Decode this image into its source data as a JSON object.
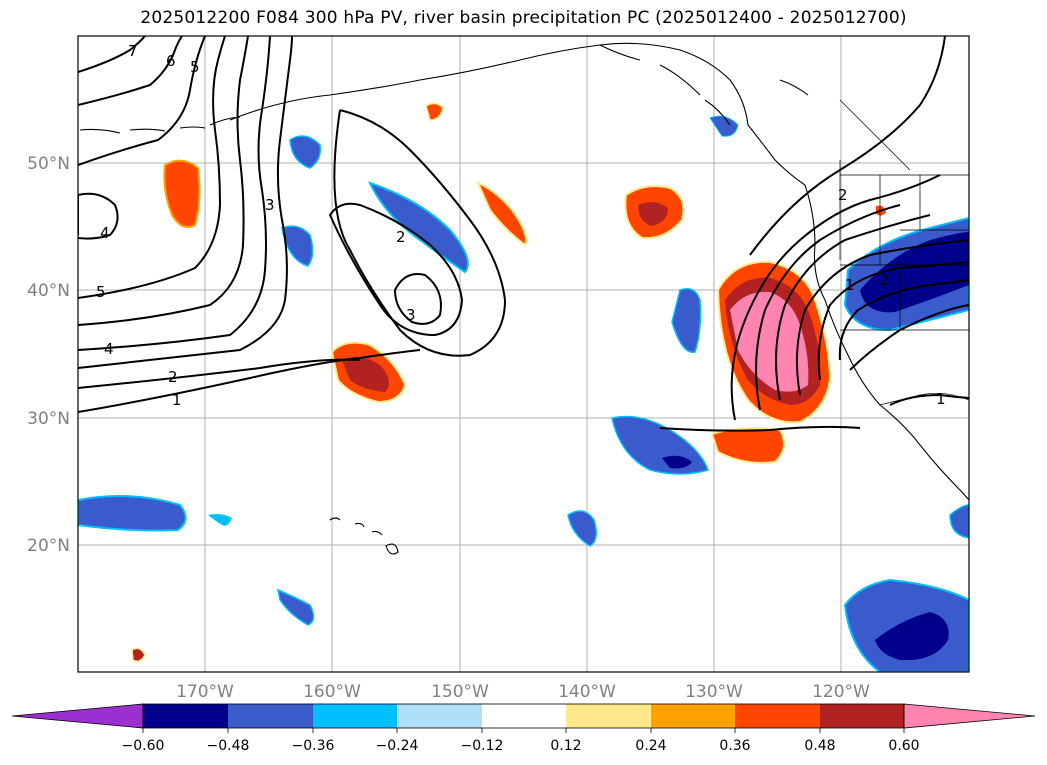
{
  "title": "2025012200 F084 300 hPa PV, river basin precipitation PC (2025012400 - 2025012700)",
  "lat_labels": [
    "50°N",
    "40°N",
    "30°N",
    "20°N"
  ],
  "lon_labels": [
    "170°W",
    "160°W",
    "150°W",
    "140°W",
    "130°W",
    "120°W"
  ],
  "contour_labels": [
    "7",
    "6",
    "5",
    "3",
    "4",
    "5",
    "4",
    "2",
    "1",
    "2",
    "3",
    "2",
    "1",
    "1",
    "2"
  ],
  "colorbar": {
    "tick_labels": [
      "−0.60",
      "−0.48",
      "−0.36",
      "−0.24",
      "−0.12",
      "0.12",
      "0.24",
      "0.36",
      "0.48",
      "0.60"
    ],
    "colors": [
      "#9b30d0",
      "#00008b",
      "#3a5bcc",
      "#00bfff",
      "#b0e0f8",
      "#ffffff",
      "#ffe88a",
      "#ffa200",
      "#ff4500",
      "#b22222",
      "#ff85b0"
    ]
  },
  "colors": {
    "land_outline": "#000000",
    "grid": "#b0b0b0",
    "axis_label": "#808080"
  }
}
